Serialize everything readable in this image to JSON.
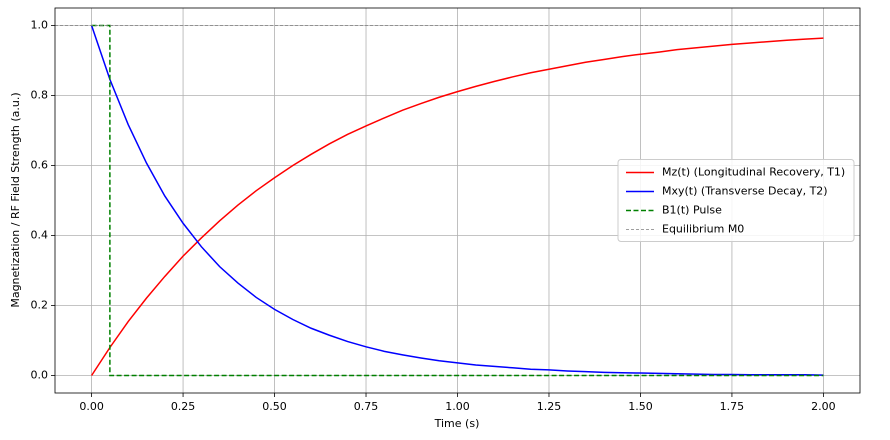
{
  "chart_data": {
    "type": "line",
    "xlabel": "Time (s)",
    "ylabel": "Magnetization / RF Field Strength (a.u.)",
    "x": [
      0,
      0.05,
      0.1,
      0.15,
      0.2,
      0.25,
      0.3,
      0.35,
      0.4,
      0.45,
      0.5,
      0.55,
      0.6,
      0.65,
      0.7,
      0.75,
      0.8,
      0.85,
      0.9,
      0.95,
      1.0,
      1.05,
      1.1,
      1.15,
      1.2,
      1.25,
      1.3,
      1.35,
      1.4,
      1.45,
      1.5,
      1.55,
      1.6,
      1.65,
      1.7,
      1.75,
      1.8,
      1.85,
      1.9,
      1.95,
      2.0
    ],
    "series": [
      {
        "name": "Mz(t) (Longitudinal Recovery, T1)",
        "color": "#ff0000",
        "linestyle": "solid",
        "values": [
          0,
          0.08,
          0.154,
          0.221,
          0.283,
          0.341,
          0.393,
          0.442,
          0.487,
          0.528,
          0.565,
          0.6,
          0.632,
          0.662,
          0.689,
          0.713,
          0.736,
          0.758,
          0.777,
          0.795,
          0.811,
          0.826,
          0.84,
          0.853,
          0.865,
          0.875,
          0.885,
          0.895,
          0.903,
          0.911,
          0.918,
          0.924,
          0.931,
          0.936,
          0.941,
          0.946,
          0.95,
          0.954,
          0.958,
          0.961,
          0.964
        ]
      },
      {
        "name": "Mxy(t) (Transverse Decay, T2)",
        "color": "#0000ff",
        "linestyle": "solid",
        "values": [
          1,
          0.846,
          0.717,
          0.607,
          0.513,
          0.435,
          0.368,
          0.311,
          0.264,
          0.223,
          0.189,
          0.16,
          0.135,
          0.115,
          0.097,
          0.082,
          0.069,
          0.059,
          0.05,
          0.042,
          0.036,
          0.03,
          0.026,
          0.022,
          0.018,
          0.016,
          0.013,
          0.011,
          0.009,
          0.008,
          0.007,
          0.006,
          0.005,
          0.004,
          0.003,
          0.003,
          0.002,
          0.002,
          0.002,
          0.002,
          0.001
        ]
      },
      {
        "name": "B1(t) Pulse",
        "color": "#008000",
        "linestyle": "dashed",
        "x": [
          0,
          0.05,
          0.05,
          2.0
        ],
        "values": [
          1,
          1,
          0,
          0
        ]
      },
      {
        "name": "Equilibrium M0",
        "color": "#808080",
        "linestyle": "thin-dashed",
        "x": [
          -0.1,
          2.1
        ],
        "values": [
          1,
          1
        ]
      }
    ],
    "xlim": [
      -0.1,
      2.1
    ],
    "ylim": [
      -0.05,
      1.05
    ],
    "xticks": [
      {
        "value": 0,
        "label": "0.00"
      },
      {
        "value": 0.25,
        "label": "0.25"
      },
      {
        "value": 0.5,
        "label": "0.50"
      },
      {
        "value": 0.75,
        "label": "0.75"
      },
      {
        "value": 1,
        "label": "1.00"
      },
      {
        "value": 1.25,
        "label": "1.25"
      },
      {
        "value": 1.5,
        "label": "1.50"
      },
      {
        "value": 1.75,
        "label": "1.75"
      },
      {
        "value": 2,
        "label": "2.00"
      }
    ],
    "yticks": [
      {
        "value": 0,
        "label": "0.0"
      },
      0.2,
      0.4,
      0.6,
      0.8,
      {
        "value": 1,
        "label": "1.0"
      }
    ],
    "grid": true,
    "legend": "center-right"
  }
}
